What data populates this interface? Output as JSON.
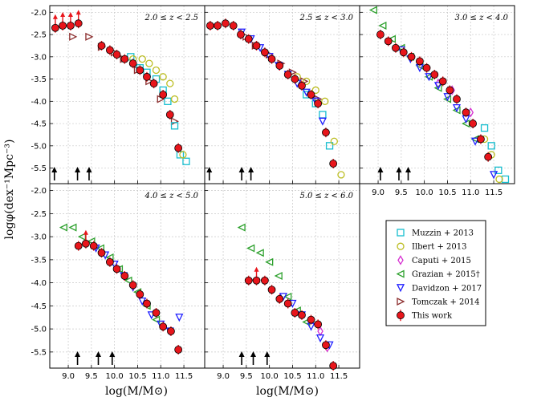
{
  "figure": {
    "ylabel": "logφ(dex⁻¹Mpc⁻³)",
    "xlabel": "log(M/M⊙)",
    "x_ticks": [
      "9.0",
      "9.5",
      "10.0",
      "10.5",
      "11.0",
      "11.5"
    ],
    "y_ticks": [
      "-2.0",
      "-2.5",
      "-3.0",
      "-3.5",
      "-4.0",
      "-4.5",
      "-5.0",
      "-5.5"
    ]
  },
  "legend": {
    "entries": [
      {
        "label": "Muzzin + 2013",
        "marker": "square",
        "color": "#17becf"
      },
      {
        "label": "Ilbert + 2013",
        "marker": "circle",
        "color": "#bcbd22"
      },
      {
        "label": "Caputi + 2015",
        "marker": "diamond",
        "color": "#d62fd0"
      },
      {
        "label": "Grazian + 2015†",
        "marker": "triangle-left",
        "color": "#2ca02c"
      },
      {
        "label": "Davidzon + 2017",
        "marker": "triangle-down",
        "color": "#1f1fff"
      },
      {
        "label": "Tomczak + 2014",
        "marker": "triangle-right",
        "color": "#8c2d2d"
      },
      {
        "label": "This work",
        "marker": "filled-circle",
        "color": "#e8151b"
      }
    ]
  },
  "chart_data": [
    {
      "type": "scatter",
      "panel": "2.0 ≤ z < 2.5",
      "xlim": [
        8.6,
        11.95
      ],
      "ylim": [
        -5.85,
        -1.85
      ],
      "series": [
        {
          "name": "This work",
          "marker": "filled-circle",
          "points": [
            [
              8.72,
              -2.35
            ],
            [
              8.88,
              -2.3
            ],
            [
              9.05,
              -2.3
            ],
            [
              9.22,
              -2.25
            ],
            [
              9.72,
              -2.75
            ],
            [
              9.9,
              -2.85
            ],
            [
              10.05,
              -2.95
            ],
            [
              10.22,
              -3.05
            ],
            [
              10.4,
              -3.15
            ],
            [
              10.55,
              -3.3
            ],
            [
              10.7,
              -3.45
            ],
            [
              10.85,
              -3.6
            ],
            [
              11.05,
              -3.85
            ],
            [
              11.2,
              -4.3
            ],
            [
              11.38,
              -5.05
            ]
          ]
        },
        {
          "name": "Tomczak + 2014",
          "marker": "triangle-right",
          "points": [
            [
              9.1,
              -2.55
            ],
            [
              9.45,
              -2.55
            ],
            [
              9.72,
              -2.78
            ],
            [
              10.0,
              -2.9
            ],
            [
              10.2,
              -3.05
            ],
            [
              10.5,
              -3.3
            ],
            [
              10.75,
              -3.55
            ],
            [
              11.0,
              -3.95
            ],
            [
              11.3,
              -4.45
            ]
          ]
        },
        {
          "name": "Muzzin + 2013",
          "marker": "square",
          "points": [
            [
              10.35,
              -3.0
            ],
            [
              10.55,
              -3.25
            ],
            [
              10.7,
              -3.35
            ],
            [
              10.9,
              -3.5
            ],
            [
              11.05,
              -3.75
            ],
            [
              11.15,
              -4.0
            ],
            [
              11.3,
              -4.55
            ],
            [
              11.42,
              -5.2
            ],
            [
              11.55,
              -5.35
            ]
          ]
        },
        {
          "name": "Ilbert + 2013",
          "marker": "circle",
          "points": [
            [
              10.4,
              -3.05
            ],
            [
              10.6,
              -3.05
            ],
            [
              10.75,
              -3.15
            ],
            [
              10.9,
              -3.3
            ],
            [
              11.05,
              -3.45
            ],
            [
              11.2,
              -3.6
            ],
            [
              11.3,
              -3.95
            ],
            [
              11.48,
              -5.2
            ]
          ]
        }
      ],
      "upward_limits_x": [
        8.72,
        8.88,
        9.05,
        9.22
      ],
      "completeness_x": [
        8.7,
        9.2,
        9.45
      ]
    },
    {
      "type": "scatter",
      "panel": "2.5 ≤ z < 3.0",
      "xlim": [
        8.6,
        11.95
      ],
      "ylim": [
        -5.85,
        -1.85
      ],
      "series": [
        {
          "name": "This work",
          "marker": "filled-circle",
          "points": [
            [
              8.72,
              -2.3
            ],
            [
              8.88,
              -2.3
            ],
            [
              9.05,
              -2.25
            ],
            [
              9.22,
              -2.3
            ],
            [
              9.38,
              -2.5
            ],
            [
              9.55,
              -2.6
            ],
            [
              9.72,
              -2.75
            ],
            [
              9.9,
              -2.9
            ],
            [
              10.05,
              -3.05
            ],
            [
              10.22,
              -3.2
            ],
            [
              10.4,
              -3.4
            ],
            [
              10.55,
              -3.5
            ],
            [
              10.7,
              -3.65
            ],
            [
              10.9,
              -3.85
            ],
            [
              11.05,
              -4.05
            ],
            [
              11.22,
              -4.7
            ],
            [
              11.38,
              -5.4
            ]
          ]
        },
        {
          "name": "Tomczak + 2014",
          "marker": "triangle-right",
          "points": [
            [
              9.5,
              -2.55
            ],
            [
              9.7,
              -2.75
            ],
            [
              10.0,
              -2.95
            ],
            [
              10.25,
              -3.15
            ],
            [
              10.5,
              -3.35
            ],
            [
              10.75,
              -3.55
            ],
            [
              11.05,
              -3.95
            ]
          ]
        },
        {
          "name": "Davidzon + 2017",
          "marker": "triangle-down",
          "points": [
            [
              9.4,
              -2.45
            ],
            [
              9.6,
              -2.6
            ],
            [
              9.8,
              -2.8
            ],
            [
              10.0,
              -3.0
            ],
            [
              10.2,
              -3.2
            ],
            [
              10.4,
              -3.4
            ],
            [
              10.6,
              -3.6
            ],
            [
              10.8,
              -3.8
            ],
            [
              11.0,
              -4.0
            ],
            [
              11.15,
              -4.45
            ]
          ]
        },
        {
          "name": "Muzzin + 2013",
          "marker": "square",
          "points": [
            [
              10.8,
              -3.85
            ],
            [
              11.0,
              -4.05
            ],
            [
              11.15,
              -4.3
            ],
            [
              11.3,
              -5.0
            ]
          ]
        },
        {
          "name": "Ilbert + 2013",
          "marker": "circle",
          "points": [
            [
              10.6,
              -3.45
            ],
            [
              10.8,
              -3.55
            ],
            [
              11.0,
              -3.75
            ],
            [
              11.2,
              -4.0
            ],
            [
              11.4,
              -4.9
            ],
            [
              11.55,
              -5.65
            ]
          ]
        }
      ],
      "upward_limits_x": [],
      "completeness_x": [
        8.7,
        9.4,
        9.6
      ]
    },
    {
      "type": "scatter",
      "panel": "3.0 ≤ z < 4.0",
      "xlim": [
        8.6,
        11.95
      ],
      "ylim": [
        -5.85,
        -1.85
      ],
      "series": [
        {
          "name": "This work",
          "marker": "filled-circle",
          "points": [
            [
              9.05,
              -2.5
            ],
            [
              9.22,
              -2.65
            ],
            [
              9.38,
              -2.8
            ],
            [
              9.55,
              -2.9
            ],
            [
              9.72,
              -3.0
            ],
            [
              9.9,
              -3.1
            ],
            [
              10.05,
              -3.25
            ],
            [
              10.22,
              -3.4
            ],
            [
              10.4,
              -3.55
            ],
            [
              10.55,
              -3.75
            ],
            [
              10.7,
              -3.95
            ],
            [
              10.9,
              -4.25
            ],
            [
              11.05,
              -4.5
            ],
            [
              11.22,
              -4.85
            ],
            [
              11.38,
              -5.25
            ]
          ]
        },
        {
          "name": "Grazian + 2015†",
          "marker": "triangle-left",
          "points": [
            [
              8.9,
              -1.95
            ],
            [
              9.1,
              -2.3
            ],
            [
              9.3,
              -2.6
            ],
            [
              9.5,
              -2.8
            ],
            [
              9.7,
              -3.0
            ],
            [
              9.9,
              -3.2
            ],
            [
              10.1,
              -3.45
            ],
            [
              10.3,
              -3.7
            ],
            [
              10.5,
              -3.95
            ],
            [
              10.7,
              -4.2
            ],
            [
              10.9,
              -4.5
            ],
            [
              11.1,
              -4.85
            ]
          ]
        },
        {
          "name": "Davidzon + 2017",
          "marker": "triangle-down",
          "points": [
            [
              9.5,
              -2.85
            ],
            [
              9.7,
              -3.05
            ],
            [
              9.9,
              -3.25
            ],
            [
              10.1,
              -3.45
            ],
            [
              10.3,
              -3.65
            ],
            [
              10.5,
              -3.9
            ],
            [
              10.7,
              -4.15
            ],
            [
              10.9,
              -4.4
            ],
            [
              11.1,
              -4.9
            ],
            [
              11.5,
              -5.65
            ]
          ]
        },
        {
          "name": "Caputi + 2015",
          "marker": "diamond",
          "points": [
            [
              10.3,
              -3.6
            ],
            [
              10.6,
              -3.75
            ],
            [
              11.0,
              -4.25
            ]
          ]
        },
        {
          "name": "Muzzin + 2013",
          "marker": "square",
          "points": [
            [
              11.3,
              -4.6
            ],
            [
              11.45,
              -5.0
            ],
            [
              11.6,
              -5.55
            ],
            [
              11.75,
              -5.75
            ]
          ]
        },
        {
          "name": "Ilbert + 2013",
          "marker": "circle",
          "points": [
            [
              11.3,
              -4.85
            ],
            [
              11.45,
              -5.2
            ],
            [
              11.62,
              -5.75
            ]
          ]
        }
      ],
      "upward_limits_x": [],
      "completeness_x": [
        9.05,
        9.45,
        9.65
      ]
    },
    {
      "type": "scatter",
      "panel": "4.0 ≤ z < 5.0",
      "xlim": [
        8.6,
        11.95
      ],
      "ylim": [
        -5.85,
        -1.85
      ],
      "series": [
        {
          "name": "This work",
          "marker": "filled-circle",
          "points": [
            [
              9.22,
              -3.2
            ],
            [
              9.38,
              -3.15
            ],
            [
              9.55,
              -3.2
            ],
            [
              9.72,
              -3.35
            ],
            [
              9.9,
              -3.55
            ],
            [
              10.05,
              -3.7
            ],
            [
              10.22,
              -3.85
            ],
            [
              10.4,
              -4.05
            ],
            [
              10.55,
              -4.25
            ],
            [
              10.7,
              -4.45
            ],
            [
              10.9,
              -4.65
            ],
            [
              11.05,
              -4.95
            ],
            [
              11.22,
              -5.05
            ],
            [
              11.38,
              -5.45
            ]
          ]
        },
        {
          "name": "Grazian + 2015†",
          "marker": "triangle-left",
          "points": [
            [
              8.9,
              -2.8
            ],
            [
              9.1,
              -2.8
            ],
            [
              9.3,
              -3.0
            ],
            [
              9.5,
              -3.1
            ],
            [
              9.7,
              -3.25
            ],
            [
              9.9,
              -3.45
            ],
            [
              10.1,
              -3.7
            ],
            [
              10.3,
              -3.95
            ],
            [
              10.5,
              -4.2
            ],
            [
              10.7,
              -4.5
            ],
            [
              10.9,
              -4.8
            ]
          ]
        },
        {
          "name": "Davidzon + 2017",
          "marker": "triangle-down",
          "points": [
            [
              9.6,
              -3.25
            ],
            [
              9.8,
              -3.4
            ],
            [
              10.0,
              -3.6
            ],
            [
              10.2,
              -3.85
            ],
            [
              10.4,
              -4.1
            ],
            [
              10.6,
              -4.4
            ],
            [
              10.8,
              -4.7
            ],
            [
              11.0,
              -4.9
            ],
            [
              11.2,
              -5.05
            ],
            [
              11.4,
              -4.75
            ]
          ]
        }
      ],
      "upward_limits_x": [
        9.38
      ],
      "completeness_x": [
        9.2,
        9.65,
        9.95
      ]
    },
    {
      "type": "scatter",
      "panel": "5.0 ≤ z < 6.0",
      "xlim": [
        8.6,
        11.95
      ],
      "ylim": [
        -5.85,
        -1.85
      ],
      "series": [
        {
          "name": "This work",
          "marker": "filled-circle",
          "points": [
            [
              9.55,
              -3.95
            ],
            [
              9.72,
              -3.95
            ],
            [
              9.9,
              -3.95
            ],
            [
              10.05,
              -4.15
            ],
            [
              10.22,
              -4.35
            ],
            [
              10.4,
              -4.45
            ],
            [
              10.55,
              -4.65
            ],
            [
              10.7,
              -4.7
            ],
            [
              10.9,
              -4.8
            ],
            [
              11.05,
              -4.9
            ],
            [
              11.22,
              -5.35
            ],
            [
              11.38,
              -5.8
            ]
          ]
        },
        {
          "name": "Grazian + 2015†",
          "marker": "triangle-left",
          "points": [
            [
              9.4,
              -2.8
            ],
            [
              9.6,
              -3.25
            ],
            [
              9.8,
              -3.35
            ],
            [
              10.0,
              -3.55
            ],
            [
              10.2,
              -3.85
            ],
            [
              10.4,
              -4.3
            ],
            [
              10.6,
              -4.6
            ],
            [
              10.8,
              -4.85
            ]
          ]
        },
        {
          "name": "Davidzon + 2017",
          "marker": "triangle-down",
          "points": [
            [
              10.3,
              -4.3
            ],
            [
              10.5,
              -4.45
            ],
            [
              10.7,
              -4.7
            ],
            [
              10.9,
              -4.95
            ],
            [
              11.1,
              -5.2
            ],
            [
              11.3,
              -5.35
            ]
          ]
        },
        {
          "name": "Caputi + 2015",
          "marker": "diamond",
          "points": [
            [
              11.1,
              -5.05
            ],
            [
              11.25,
              -5.4
            ]
          ]
        }
      ],
      "upward_limits_x": [
        9.72
      ],
      "completeness_x": [
        9.4,
        9.65,
        9.95
      ]
    }
  ]
}
